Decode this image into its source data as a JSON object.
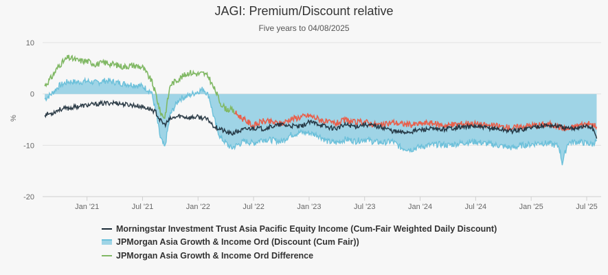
{
  "chart_data": {
    "type": "line",
    "title": "JAGI: Premium/Discount relative",
    "subtitle": "Five years to 04/08/2025",
    "ylabel": "%",
    "ylim": [
      -20,
      10
    ],
    "y_ticks": [
      "10",
      "0",
      "-10",
      "-20"
    ],
    "y_tick_values": [
      10,
      0,
      -10,
      -20
    ],
    "x_ticks": [
      "Jan '21",
      "Jul '21",
      "Jan '22",
      "Jul '22",
      "Jan '23",
      "Jul '23",
      "Jan '24",
      "Jul '24",
      "Jan '25",
      "Jul '25"
    ],
    "x_tick_positions": [
      2021.0,
      2021.5,
      2022.0,
      2022.5,
      2023.0,
      2023.5,
      2024.0,
      2024.5,
      2025.0,
      2025.5
    ],
    "xlim": [
      2020.6,
      2025.63
    ],
    "grid": true,
    "legend_position": "bottom",
    "series": [
      {
        "name": "Morningstar Investment Trust Asia Pacific Equity Income (Cum-Fair Weighted Daily Discount)",
        "color": "#1a2a36",
        "style": "line",
        "x": [
          2020.62,
          2020.68,
          2020.75,
          2020.83,
          2020.92,
          2021.0,
          2021.08,
          2021.17,
          2021.25,
          2021.33,
          2021.42,
          2021.5,
          2021.58,
          2021.62,
          2021.66,
          2021.7,
          2021.75,
          2021.83,
          2021.92,
          2022.0,
          2022.05,
          2022.1,
          2022.13,
          2022.16,
          2022.2,
          2022.25,
          2022.3,
          2022.33,
          2022.42,
          2022.5,
          2022.58,
          2022.67,
          2022.75,
          2022.83,
          2022.92,
          2023.0,
          2023.08,
          2023.17,
          2023.25,
          2023.33,
          2023.42,
          2023.5,
          2023.58,
          2023.67,
          2023.75,
          2023.83,
          2023.92,
          2024.0,
          2024.08,
          2024.17,
          2024.25,
          2024.33,
          2024.42,
          2024.5,
          2024.58,
          2024.67,
          2024.75,
          2024.83,
          2024.92,
          2025.0,
          2025.08,
          2025.17,
          2025.25,
          2025.33,
          2025.42,
          2025.5,
          2025.55,
          2025.59
        ],
        "values": [
          -4.0,
          -3.8,
          -3.0,
          -2.8,
          -2.4,
          -2.2,
          -2.0,
          -1.8,
          -1.7,
          -2.0,
          -2.2,
          -2.5,
          -3.0,
          -3.6,
          -5.2,
          -6.0,
          -4.9,
          -4.3,
          -4.6,
          -4.5,
          -4.7,
          -5.2,
          -6.0,
          -6.5,
          -6.8,
          -7.4,
          -7.8,
          -7.5,
          -6.9,
          -6.6,
          -6.8,
          -6.3,
          -6.0,
          -6.2,
          -6.4,
          -5.5,
          -5.8,
          -6.5,
          -6.7,
          -6.0,
          -6.3,
          -5.9,
          -6.2,
          -6.5,
          -7.2,
          -7.5,
          -7.3,
          -7.0,
          -6.8,
          -7.0,
          -6.7,
          -6.5,
          -6.4,
          -6.3,
          -6.6,
          -6.7,
          -7.0,
          -7.2,
          -6.9,
          -6.5,
          -6.2,
          -6.1,
          -6.3,
          -6.8,
          -6.5,
          -6.3,
          -6.6,
          -8.7
        ]
      },
      {
        "name": "JPMorgan Asia Growth & Income Ord (Discount (Cum Fair))",
        "color": "#6cc0da",
        "fill_color": "#9fd4e6",
        "style": "area",
        "x": [
          2020.62,
          2020.68,
          2020.75,
          2020.83,
          2020.92,
          2021.0,
          2021.08,
          2021.17,
          2021.25,
          2021.33,
          2021.42,
          2021.5,
          2021.58,
          2021.62,
          2021.66,
          2021.7,
          2021.75,
          2021.83,
          2021.92,
          2022.0,
          2022.05,
          2022.1,
          2022.13,
          2022.16,
          2022.2,
          2022.25,
          2022.3,
          2022.33,
          2022.42,
          2022.5,
          2022.58,
          2022.67,
          2022.75,
          2022.83,
          2022.92,
          2023.0,
          2023.08,
          2023.17,
          2023.25,
          2023.33,
          2023.42,
          2023.5,
          2023.58,
          2023.67,
          2023.75,
          2023.83,
          2023.92,
          2024.0,
          2024.08,
          2024.17,
          2024.25,
          2024.33,
          2024.42,
          2024.5,
          2024.58,
          2024.67,
          2024.75,
          2024.83,
          2024.92,
          2025.0,
          2025.08,
          2025.17,
          2025.25,
          2025.28,
          2025.33,
          2025.42,
          2025.5,
          2025.55,
          2025.59
        ],
        "values": [
          -1.0,
          0.0,
          1.6,
          2.4,
          2.3,
          2.5,
          2.2,
          2.6,
          2.3,
          2.0,
          1.8,
          1.5,
          0.4,
          -3.5,
          -8.5,
          -10.5,
          -4.0,
          -1.0,
          -0.3,
          0.5,
          1.0,
          -0.5,
          -3.5,
          -6.0,
          -8.5,
          -9.5,
          -10.6,
          -10.2,
          -9.2,
          -9.6,
          -8.8,
          -9.0,
          -9.3,
          -8.0,
          -7.5,
          -7.6,
          -8.0,
          -9.3,
          -9.5,
          -8.8,
          -9.2,
          -8.8,
          -9.3,
          -9.5,
          -9.2,
          -10.5,
          -10.8,
          -10.3,
          -10.0,
          -9.8,
          -10.0,
          -9.7,
          -9.4,
          -9.3,
          -9.6,
          -9.9,
          -10.2,
          -10.5,
          -10.0,
          -9.8,
          -9.5,
          -9.7,
          -10.2,
          -13.5,
          -9.5,
          -9.3,
          -9.6,
          -9.8,
          -9.0
        ]
      },
      {
        "name": "JPMorgan Asia Growth & Income Ord Difference",
        "color_before": "#80b864",
        "color_after": "#e8604c",
        "switch_x": 2022.33,
        "style": "line",
        "x": [
          2020.62,
          2020.68,
          2020.75,
          2020.83,
          2020.92,
          2021.0,
          2021.08,
          2021.17,
          2021.25,
          2021.33,
          2021.42,
          2021.5,
          2021.58,
          2021.62,
          2021.66,
          2021.7,
          2021.75,
          2021.83,
          2021.92,
          2022.0,
          2022.05,
          2022.1,
          2022.13,
          2022.16,
          2022.2,
          2022.25,
          2022.3,
          2022.33,
          2022.42,
          2022.5,
          2022.58,
          2022.67,
          2022.75,
          2022.83,
          2022.92,
          2023.0,
          2023.08,
          2023.17,
          2023.25,
          2023.33,
          2023.42,
          2023.5,
          2023.58,
          2023.67,
          2023.75,
          2023.83,
          2023.92,
          2024.0,
          2024.08,
          2024.17,
          2024.25,
          2024.33,
          2024.42,
          2024.5,
          2024.58,
          2024.67,
          2024.75,
          2024.83,
          2024.92,
          2025.0,
          2025.08,
          2025.17,
          2025.25,
          2025.33,
          2025.42,
          2025.5,
          2025.55,
          2025.59
        ],
        "values": [
          1.6,
          3.2,
          5.6,
          7.1,
          6.5,
          6.4,
          5.8,
          6.1,
          5.7,
          5.3,
          5.6,
          5.2,
          2.6,
          0.0,
          -3.6,
          -4.6,
          1.8,
          3.0,
          4.2,
          3.9,
          4.0,
          3.2,
          1.6,
          0.5,
          -1.7,
          -2.9,
          -3.1,
          -3.6,
          -5.1,
          -6.2,
          -5.3,
          -5.5,
          -5.8,
          -4.9,
          -4.5,
          -4.2,
          -4.8,
          -5.6,
          -5.7,
          -5.1,
          -5.6,
          -5.4,
          -5.9,
          -6.1,
          -5.5,
          -5.8,
          -6.0,
          -5.8,
          -5.6,
          -6.0,
          -6.1,
          -5.9,
          -5.7,
          -5.8,
          -6.1,
          -6.2,
          -6.4,
          -6.6,
          -6.3,
          -6.1,
          -6.0,
          -5.9,
          -6.4,
          -6.9,
          -6.1,
          -5.8,
          -6.0,
          -6.4
        ]
      }
    ]
  },
  "legend": {
    "items": [
      "Morningstar Investment Trust Asia Pacific Equity Income (Cum-Fair Weighted Daily Discount)",
      "JPMorgan Asia Growth & Income Ord (Discount (Cum Fair))",
      "JPMorgan Asia Growth & Income Ord Difference"
    ]
  },
  "colors": {
    "background": "#f7f7f7",
    "grid": "#e2e2e2",
    "axis": "#cfcfcf",
    "text": "#666666"
  }
}
